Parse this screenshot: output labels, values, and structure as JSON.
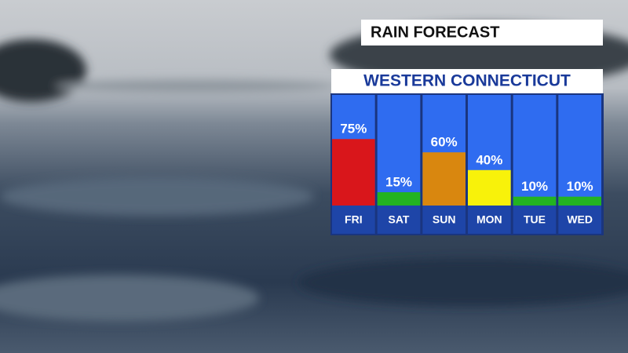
{
  "chart_data": {
    "type": "bar",
    "title": "RAIN FORECAST",
    "subtitle": "WESTERN CONNECTICUT",
    "categories": [
      "FRI",
      "SAT",
      "SUN",
      "MON",
      "TUE",
      "WED"
    ],
    "values": [
      75,
      15,
      60,
      40,
      10,
      10
    ],
    "value_labels": [
      "75%",
      "15%",
      "60%",
      "40%",
      "10%",
      "10%"
    ],
    "colors": [
      "#d9161b",
      "#23b321",
      "#d9870f",
      "#f8f20a",
      "#23b321",
      "#23b321"
    ],
    "ylim": [
      0,
      100
    ]
  }
}
